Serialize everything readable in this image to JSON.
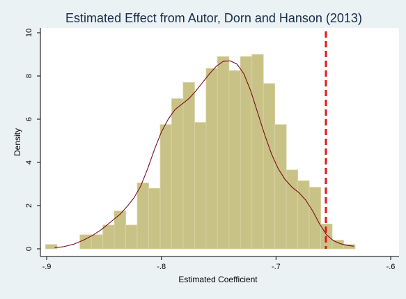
{
  "chart_data": {
    "type": "bar",
    "title": "Estimated Effect from Autor, Dorn and Hanson (2013)",
    "xlabel": "Estimated Coefficient",
    "ylabel": "Density",
    "xlim": [
      -0.9,
      -0.6
    ],
    "ylim": [
      0,
      10
    ],
    "xticks": [
      {
        "value": -0.9,
        "label": "-.9"
      },
      {
        "value": -0.8,
        "label": "-.8"
      },
      {
        "value": -0.7,
        "label": "-.7"
      },
      {
        "value": -0.6,
        "label": "-.6"
      }
    ],
    "yticks": [
      {
        "value": 0,
        "label": "0"
      },
      {
        "value": 2,
        "label": "2"
      },
      {
        "value": 4,
        "label": "4"
      },
      {
        "value": 6,
        "label": "6"
      },
      {
        "value": 8,
        "label": "8"
      },
      {
        "value": 10,
        "label": "10"
      }
    ],
    "histogram": {
      "bins": [
        {
          "x0": -0.901,
          "x1": -0.891,
          "density": 0.2
        },
        {
          "x0": -0.871,
          "x1": -0.861,
          "density": 0.65
        },
        {
          "x0": -0.861,
          "x1": -0.851,
          "density": 0.65
        },
        {
          "x0": -0.851,
          "x1": -0.841,
          "density": 1.1
        },
        {
          "x0": -0.841,
          "x1": -0.831,
          "density": 1.75
        },
        {
          "x0": -0.831,
          "x1": -0.821,
          "density": 1.1
        },
        {
          "x0": -0.821,
          "x1": -0.811,
          "density": 3.05
        },
        {
          "x0": -0.811,
          "x1": -0.801,
          "density": 2.8
        },
        {
          "x0": -0.801,
          "x1": -0.791,
          "density": 5.75
        },
        {
          "x0": -0.791,
          "x1": -0.781,
          "density": 6.95
        },
        {
          "x0": -0.781,
          "x1": -0.771,
          "density": 7.7
        },
        {
          "x0": -0.771,
          "x1": -0.761,
          "density": 5.85
        },
        {
          "x0": -0.761,
          "x1": -0.751,
          "density": 8.35
        },
        {
          "x0": -0.751,
          "x1": -0.741,
          "density": 8.9
        },
        {
          "x0": -0.741,
          "x1": -0.731,
          "density": 8.25
        },
        {
          "x0": -0.731,
          "x1": -0.721,
          "density": 8.9
        },
        {
          "x0": -0.721,
          "x1": -0.711,
          "density": 9.0
        },
        {
          "x0": -0.711,
          "x1": -0.701,
          "density": 7.65
        },
        {
          "x0": -0.701,
          "x1": -0.691,
          "density": 5.75
        },
        {
          "x0": -0.691,
          "x1": -0.681,
          "density": 3.65
        },
        {
          "x0": -0.681,
          "x1": -0.671,
          "density": 3.15
        },
        {
          "x0": -0.671,
          "x1": -0.661,
          "density": 2.85
        },
        {
          "x0": -0.661,
          "x1": -0.651,
          "density": 1.15
        },
        {
          "x0": -0.651,
          "x1": -0.641,
          "density": 0.4
        },
        {
          "x0": -0.641,
          "x1": -0.631,
          "density": 0.2
        }
      ],
      "color": "#c9c286",
      "edge_color": "#d8d4a6"
    },
    "density_curve": {
      "color": "#7a0b1e",
      "points": [
        [
          -0.893,
          0.05
        ],
        [
          -0.885,
          0.1
        ],
        [
          -0.876,
          0.22
        ],
        [
          -0.868,
          0.4
        ],
        [
          -0.86,
          0.62
        ],
        [
          -0.852,
          0.9
        ],
        [
          -0.844,
          1.25
        ],
        [
          -0.836,
          1.6
        ],
        [
          -0.83,
          1.95
        ],
        [
          -0.824,
          2.35
        ],
        [
          -0.818,
          2.9
        ],
        [
          -0.812,
          3.7
        ],
        [
          -0.806,
          4.6
        ],
        [
          -0.8,
          5.4
        ],
        [
          -0.794,
          6.0
        ],
        [
          -0.788,
          6.45
        ],
        [
          -0.782,
          6.7
        ],
        [
          -0.776,
          6.95
        ],
        [
          -0.77,
          7.3
        ],
        [
          -0.764,
          7.7
        ],
        [
          -0.758,
          8.1
        ],
        [
          -0.752,
          8.45
        ],
        [
          -0.746,
          8.68
        ],
        [
          -0.74,
          8.7
        ],
        [
          -0.734,
          8.55
        ],
        [
          -0.728,
          8.1
        ],
        [
          -0.722,
          7.3
        ],
        [
          -0.716,
          6.3
        ],
        [
          -0.71,
          5.3
        ],
        [
          -0.704,
          4.4
        ],
        [
          -0.698,
          3.7
        ],
        [
          -0.692,
          3.2
        ],
        [
          -0.686,
          2.85
        ],
        [
          -0.68,
          2.6
        ],
        [
          -0.674,
          2.25
        ],
        [
          -0.668,
          1.75
        ],
        [
          -0.662,
          1.15
        ],
        [
          -0.656,
          0.65
        ],
        [
          -0.65,
          0.38
        ],
        [
          -0.644,
          0.24
        ],
        [
          -0.638,
          0.16
        ],
        [
          -0.632,
          0.12
        ]
      ]
    },
    "reference_line": {
      "x": -0.6565,
      "color": "#e2181a",
      "style": "dashed"
    },
    "grid": false,
    "legend": "none",
    "colors": {
      "background": "#eaf2f3",
      "plot_background": "#ffffff",
      "title": "#1a2a4a",
      "text": "#000000"
    }
  }
}
